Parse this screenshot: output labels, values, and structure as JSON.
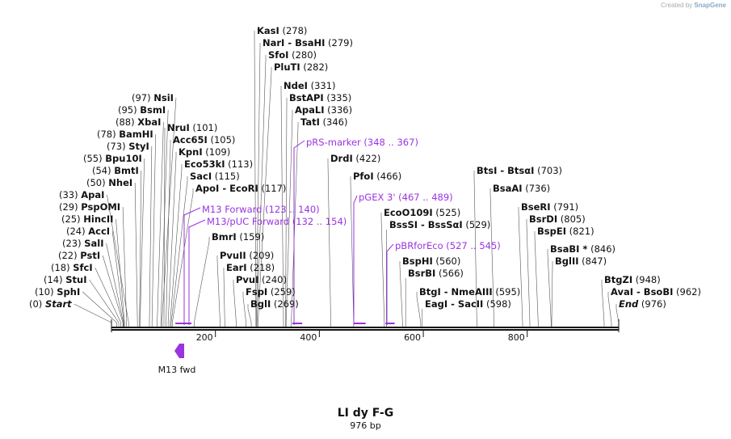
{
  "credit": {
    "prefix": "Created by",
    "brand": "SnapGene"
  },
  "title": "LI dy F-G",
  "subtitle": "976 bp",
  "primer_label": "M13 fwd",
  "colors": {
    "feature": "#9b33e0",
    "line": "#111111",
    "primer": "#9b33e0"
  },
  "sites": [
    {
      "name": "Start",
      "pos": "(0)",
      "site": 0,
      "italic": true
    },
    {
      "name": "SphI",
      "pos": "(10)",
      "site": 10
    },
    {
      "name": "StuI",
      "pos": "(14)",
      "site": 14
    },
    {
      "name": "SfcI",
      "pos": "(18)",
      "site": 18
    },
    {
      "name": "PstI",
      "pos": "(22)",
      "site": 22
    },
    {
      "name": "SalI",
      "pos": "(23)",
      "site": 23
    },
    {
      "name": "AccI",
      "pos": "(24)",
      "site": 24
    },
    {
      "name": "HincII",
      "pos": "(25)",
      "site": 25
    },
    {
      "name": "PspOMI",
      "pos": "(29)",
      "site": 29
    },
    {
      "name": "ApaI",
      "pos": "(33)",
      "site": 33
    },
    {
      "name": "NheI",
      "pos": "(50)",
      "site": 50
    },
    {
      "name": "BmtI",
      "pos": "(54)",
      "site": 54
    },
    {
      "name": "Bpu10I",
      "pos": "(55)",
      "site": 55
    },
    {
      "name": "StyI",
      "pos": "(73)",
      "site": 73
    },
    {
      "name": "BamHI",
      "pos": "(78)",
      "site": 78
    },
    {
      "name": "XbaI",
      "pos": "(88)",
      "site": 88
    },
    {
      "name": "BsmI",
      "pos": "(95)",
      "site": 95
    },
    {
      "name": "NsiI",
      "pos": "(97)",
      "site": 97
    },
    {
      "name": "NruI",
      "pos": "(101)",
      "site": 101
    },
    {
      "name": "Acc65I",
      "pos": "(105)",
      "site": 105
    },
    {
      "name": "KpnI",
      "pos": "(109)",
      "site": 109
    },
    {
      "name": "Eco53kI",
      "pos": "(113)",
      "site": 113
    },
    {
      "name": "SacI",
      "pos": "(115)",
      "site": 115
    },
    {
      "name": "ApoI - EcoRI",
      "pos": "(117)",
      "site": 117
    },
    {
      "name": "BmrI",
      "pos": "(159)",
      "site": 159
    },
    {
      "name": "PvuII",
      "pos": "(209)",
      "site": 209
    },
    {
      "name": "EarI",
      "pos": "(218)",
      "site": 218
    },
    {
      "name": "PvuI",
      "pos": "(240)",
      "site": 240
    },
    {
      "name": "FspI",
      "pos": "(259)",
      "site": 259
    },
    {
      "name": "BglI",
      "pos": "(269)",
      "site": 269
    },
    {
      "name": "KasI",
      "pos": "(278)",
      "site": 278
    },
    {
      "name": "NarI - BsaHI",
      "pos": "(279)",
      "site": 279
    },
    {
      "name": "SfoI",
      "pos": "(280)",
      "site": 280
    },
    {
      "name": "PluTI",
      "pos": "(282)",
      "site": 282
    },
    {
      "name": "NdeI",
      "pos": "(331)",
      "site": 331
    },
    {
      "name": "BstAPI",
      "pos": "(335)",
      "site": 335
    },
    {
      "name": "ApaLI",
      "pos": "(336)",
      "site": 336
    },
    {
      "name": "TatI",
      "pos": "(346)",
      "site": 346
    },
    {
      "name": "DrdI",
      "pos": "(422)",
      "site": 422
    },
    {
      "name": "PfoI",
      "pos": "(466)",
      "site": 466
    },
    {
      "name": "EcoO109I",
      "pos": "(525)",
      "site": 525
    },
    {
      "name": "BssSI - BssSαI",
      "pos": "(529)",
      "site": 529
    },
    {
      "name": "BspHI",
      "pos": "(560)",
      "site": 560
    },
    {
      "name": "BsrBI",
      "pos": "(566)",
      "site": 566
    },
    {
      "name": "BtgI - NmeAIII",
      "pos": "(595)",
      "site": 595
    },
    {
      "name": "EagI - SacII",
      "pos": "(598)",
      "site": 598
    },
    {
      "name": "BtsI - BtsαI",
      "pos": "(703)",
      "site": 703
    },
    {
      "name": "BsaAI",
      "pos": "(736)",
      "site": 736
    },
    {
      "name": "BseRI",
      "pos": "(791)",
      "site": 791
    },
    {
      "name": "BsrDI",
      "pos": "(805)",
      "site": 805
    },
    {
      "name": "BspEI",
      "pos": "(821)",
      "site": 821
    },
    {
      "name": "BsaBI *",
      "pos": "(846)",
      "site": 846
    },
    {
      "name": "BglII",
      "pos": "(847)",
      "site": 847
    },
    {
      "name": "BtgZI",
      "pos": "(948)",
      "site": 948
    },
    {
      "name": "AvaI - BsoBI",
      "pos": "(962)",
      "site": 962
    },
    {
      "name": "End",
      "pos": "(976)",
      "site": 976,
      "italic": true
    }
  ],
  "features": [
    {
      "name": "M13 Forward",
      "range": "(123 .. 140)",
      "start": 123,
      "end": 140
    },
    {
      "name": "M13/pUC Forward",
      "range": "(132 .. 154)",
      "start": 132,
      "end": 154
    },
    {
      "name": "pRS-marker",
      "range": "(348 .. 367)",
      "start": 348,
      "end": 367
    },
    {
      "name": "pGEX 3'",
      "range": "(467 .. 489)",
      "start": 467,
      "end": 489
    },
    {
      "name": "pBRforEco",
      "range": "(527 .. 545)",
      "start": 527,
      "end": 545
    }
  ],
  "axis": {
    "ticks": [
      "200",
      "400",
      "600",
      "800"
    ],
    "length_bp": 976
  }
}
